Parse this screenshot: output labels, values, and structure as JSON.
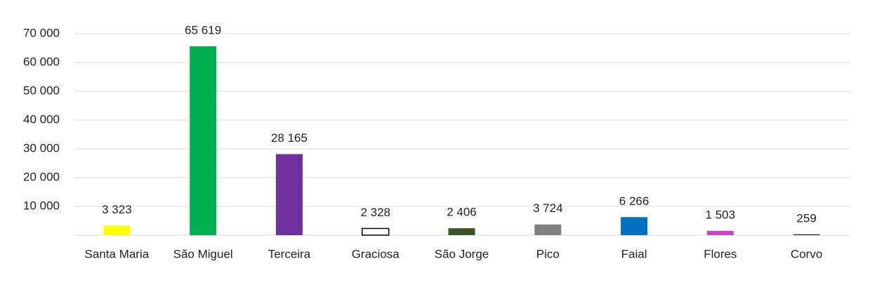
{
  "chart_data": {
    "type": "bar",
    "categories": [
      "Santa Maria",
      "São Miguel",
      "Terceira",
      "Graciosa",
      "São Jorge",
      "Pico",
      "Faial",
      "Flores",
      "Corvo"
    ],
    "values": [
      3323,
      65619,
      28165,
      2328,
      2406,
      3724,
      6266,
      1503,
      259
    ],
    "value_labels": [
      "3 323",
      "65 619",
      "28 165",
      "2 328",
      "2 406",
      "3 724",
      "6 266",
      "1 503",
      "259"
    ],
    "colors": [
      "#ffff00",
      "#00b050",
      "#7030a0",
      "#ffffff",
      "#375623",
      "#808080",
      "#0070c0",
      "#cc44cc",
      "#000000"
    ],
    "ylim": [
      0,
      70000
    ],
    "yticks": [
      {
        "value": 10000,
        "label": "10 000"
      },
      {
        "value": 20000,
        "label": "20 000"
      },
      {
        "value": 30000,
        "label": "30 000"
      },
      {
        "value": 40000,
        "label": "40 000"
      },
      {
        "value": 50000,
        "label": "50 000"
      },
      {
        "value": 60000,
        "label": "60 000"
      },
      {
        "value": 70000,
        "label": "70 000"
      }
    ],
    "grid": true
  }
}
